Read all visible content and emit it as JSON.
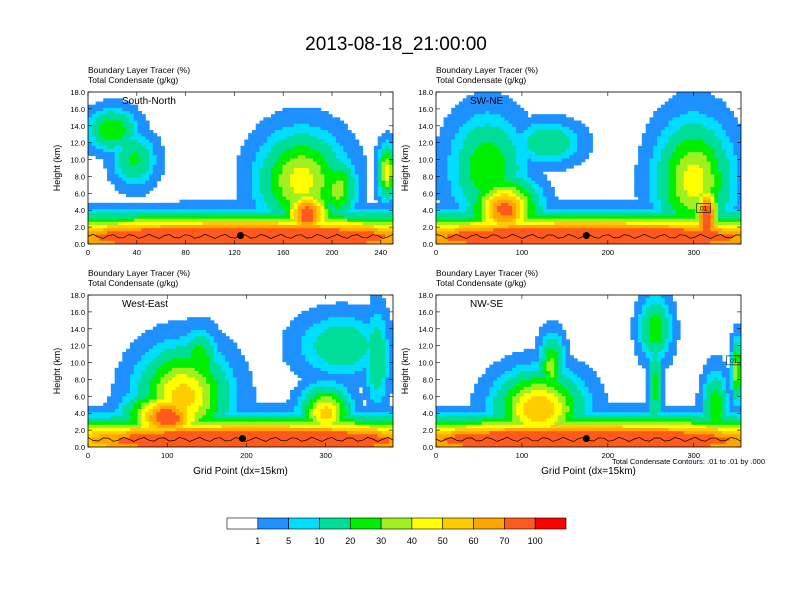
{
  "figure": {
    "title": "2013-08-18_21:00:00",
    "footnote": "Total Condensate Contours: .01 to .01 by .000"
  },
  "chart_data": [
    {
      "type": "heatmap",
      "name": "panel-south-north",
      "label": "South-North",
      "header_line1": "Boundary Layer Tracer   (%)",
      "header_line2": "Total Condensate   (g/kg)",
      "ylabel": "Height (km)",
      "xlabel": "",
      "ylim": [
        0,
        18
      ],
      "xlim": [
        0,
        250
      ],
      "yticks": [
        "0.0",
        "2.0",
        "4.0",
        "6.0",
        "8.0",
        "10.0",
        "12.0",
        "14.0",
        "16.0",
        "18.0"
      ],
      "xticks": [
        "0",
        "40",
        "80",
        "120",
        "160",
        "200",
        "240"
      ],
      "xtick_values": [
        0,
        40,
        80,
        120,
        160,
        200,
        240
      ],
      "surface_marker_x": 125,
      "contour_label": "",
      "blobs": [
        {
          "x": 125,
          "y": 0.8,
          "sx": 200,
          "sy": 2.0,
          "v": 100
        },
        {
          "x": 20,
          "y": 13.5,
          "sx": 16,
          "sy": 2.0,
          "v": 30
        },
        {
          "x": 38,
          "y": 10.0,
          "sx": 14,
          "sy": 2.5,
          "v": 22
        },
        {
          "x": 175,
          "y": 7.5,
          "sx": 28,
          "sy": 4.5,
          "v": 45
        },
        {
          "x": 180,
          "y": 3.5,
          "sx": 16,
          "sy": 2.5,
          "v": 80
        },
        {
          "x": 205,
          "y": 6.5,
          "sx": 12,
          "sy": 3.0,
          "v": 35
        },
        {
          "x": 245,
          "y": 8.5,
          "sx": 6,
          "sy": 2.5,
          "v": 45
        }
      ]
    },
    {
      "type": "heatmap",
      "name": "panel-sw-ne",
      "label": "SW-NE",
      "header_line1": "Boundary Layer Tracer   (%)",
      "header_line2": "Total Condensate   (g/kg)",
      "ylabel": "Height (km)",
      "xlabel": "",
      "ylim": [
        0,
        18
      ],
      "xlim": [
        0,
        355
      ],
      "yticks": [
        "0.0",
        "2.0",
        "4.0",
        "6.0",
        "8.0",
        "10.0",
        "12.0",
        "14.0",
        "16.0",
        "18.0"
      ],
      "xticks": [
        "0",
        "100",
        "200",
        "300"
      ],
      "xtick_values": [
        0,
        100,
        200,
        300
      ],
      "surface_marker_x": 175,
      "contour_label": "01",
      "blobs": [
        {
          "x": 178,
          "y": 0.8,
          "sx": 280,
          "sy": 2.0,
          "v": 100
        },
        {
          "x": 60,
          "y": 9.0,
          "sx": 35,
          "sy": 5.0,
          "v": 28
        },
        {
          "x": 80,
          "y": 4.0,
          "sx": 30,
          "sy": 3.0,
          "v": 75
        },
        {
          "x": 130,
          "y": 12.0,
          "sx": 30,
          "sy": 2.0,
          "v": 20
        },
        {
          "x": 300,
          "y": 7.5,
          "sx": 35,
          "sy": 5.5,
          "v": 45
        },
        {
          "x": 315,
          "y": 3.0,
          "sx": 12,
          "sy": 3.5,
          "v": 90
        }
      ]
    },
    {
      "type": "heatmap",
      "name": "panel-west-east",
      "label": "West-East",
      "header_line1": "Boundary Layer Tracer   (%)",
      "header_line2": "Total Condensate   (g/kg)",
      "ylabel": "Height (km)",
      "xlabel": "Grid Point (dx=15km)",
      "ylim": [
        0,
        18
      ],
      "xlim": [
        0,
        385
      ],
      "yticks": [
        "0.0",
        "2.0",
        "4.0",
        "6.0",
        "8.0",
        "10.0",
        "12.0",
        "14.0",
        "16.0",
        "18.0"
      ],
      "xticks": [
        "0",
        "100",
        "200",
        "300"
      ],
      "xtick_values": [
        0,
        100,
        200,
        300
      ],
      "surface_marker_x": 195,
      "contour_label": "",
      "blobs": [
        {
          "x": 210,
          "y": 0.8,
          "sx": 290,
          "sy": 2.0,
          "v": 100
        },
        {
          "x": 120,
          "y": 6.0,
          "sx": 45,
          "sy": 4.5,
          "v": 55
        },
        {
          "x": 140,
          "y": 10.0,
          "sx": 20,
          "sy": 3.0,
          "v": 30
        },
        {
          "x": 100,
          "y": 3.5,
          "sx": 40,
          "sy": 2.5,
          "v": 80
        },
        {
          "x": 320,
          "y": 12.0,
          "sx": 45,
          "sy": 3.0,
          "v": 18
        },
        {
          "x": 300,
          "y": 4.0,
          "sx": 25,
          "sy": 2.5,
          "v": 55
        },
        {
          "x": 365,
          "y": 10.5,
          "sx": 12,
          "sy": 4.5,
          "v": 20
        }
      ]
    },
    {
      "type": "heatmap",
      "name": "panel-nw-se",
      "label": "NW-SE",
      "header_line1": "Boundary Layer Tracer   (%)",
      "header_line2": "Total Condensate   (g/kg)",
      "ylabel": "Height (km)",
      "xlabel": "Grid Point (dx=15km)",
      "ylim": [
        0,
        18
      ],
      "xlim": [
        0,
        355
      ],
      "yticks": [
        "0.0",
        "2.0",
        "4.0",
        "6.0",
        "8.0",
        "10.0",
        "12.0",
        "14.0",
        "16.0",
        "18.0"
      ],
      "xticks": [
        "0",
        "100",
        "200",
        "300"
      ],
      "xtick_values": [
        0,
        100,
        200,
        300
      ],
      "surface_marker_x": 175,
      "contour_label": "01",
      "blobs": [
        {
          "x": 175,
          "y": 0.8,
          "sx": 280,
          "sy": 2.0,
          "v": 100
        },
        {
          "x": 120,
          "y": 4.5,
          "sx": 40,
          "sy": 3.5,
          "v": 60
        },
        {
          "x": 135,
          "y": 9.5,
          "sx": 12,
          "sy": 3.0,
          "v": 35
        },
        {
          "x": 255,
          "y": 14.0,
          "sx": 15,
          "sy": 3.0,
          "v": 28
        },
        {
          "x": 255,
          "y": 7.0,
          "sx": 7,
          "sy": 5.0,
          "v": 22
        },
        {
          "x": 325,
          "y": 4.5,
          "sx": 12,
          "sy": 3.5,
          "v": 30
        },
        {
          "x": 350,
          "y": 9.0,
          "sx": 5,
          "sy": 3.0,
          "v": 40
        }
      ]
    }
  ],
  "colorbar": {
    "colors": [
      "#ffffff",
      "#1e90ff",
      "#00ddff",
      "#00dd99",
      "#00ee00",
      "#a0f020",
      "#ffff00",
      "#ffcc00",
      "#ffa500",
      "#ff5a1e",
      "#ff0000"
    ],
    "labels": [
      "1",
      "5",
      "10",
      "20",
      "30",
      "40",
      "50",
      "60",
      "70",
      "100"
    ],
    "levels": [
      1,
      5,
      10,
      20,
      30,
      40,
      50,
      60,
      70,
      100
    ]
  }
}
